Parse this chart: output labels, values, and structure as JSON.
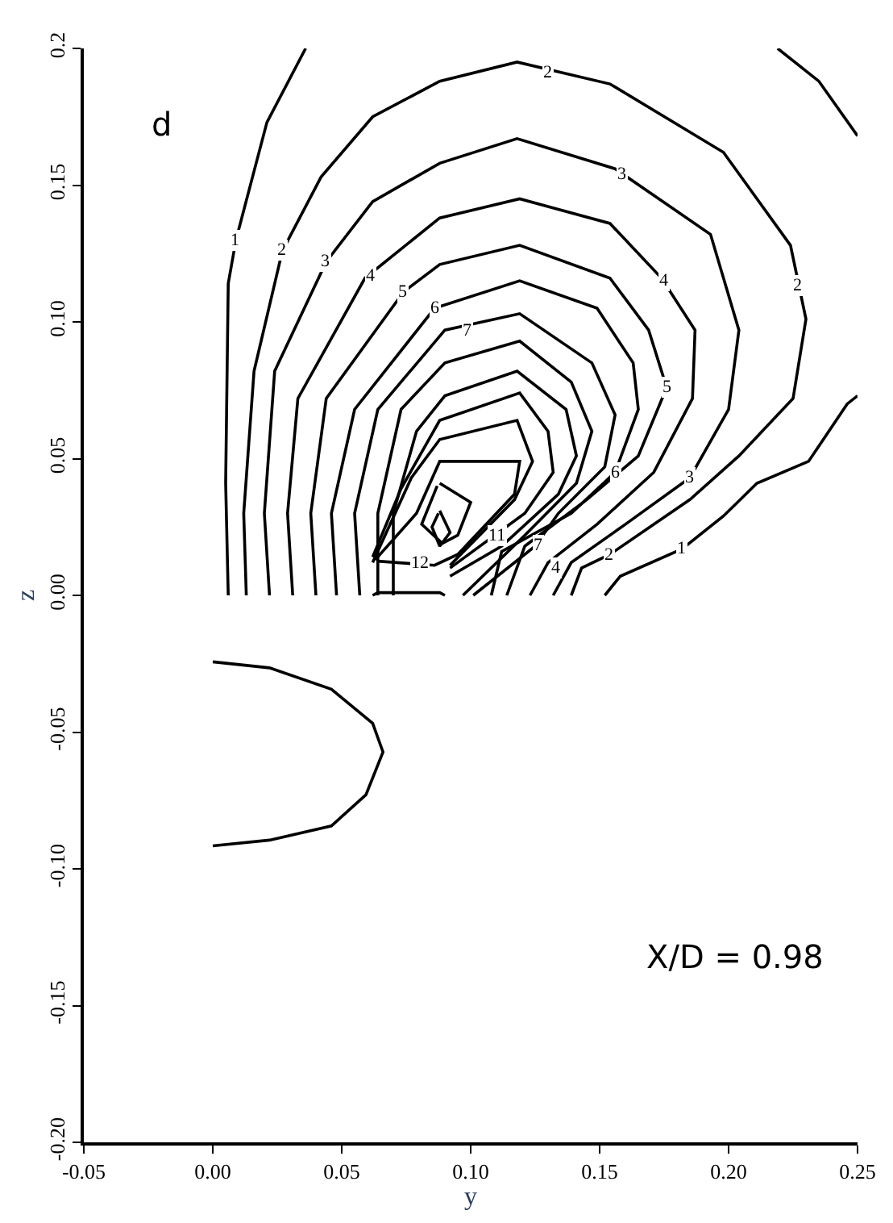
{
  "chart_data": {
    "type": "line",
    "xlabel": "y",
    "ylabel": "z",
    "xlim": [
      -0.05,
      0.25
    ],
    "ylim": [
      -0.2,
      0.2
    ],
    "xticks": [
      {
        "value": -0.05,
        "label": "-0.05"
      },
      {
        "value": 0,
        "label": "0.00"
      },
      {
        "value": 0.05,
        "label": "0.05"
      },
      {
        "value": 0.1,
        "label": "0.10"
      },
      {
        "value": 0.15,
        "label": "0.15"
      },
      {
        "value": 0.2,
        "label": "0.20"
      },
      {
        "value": 0.25,
        "label": "0.25"
      }
    ],
    "yticks": [
      {
        "value": -0.2,
        "label": "-0.20"
      },
      {
        "value": -0.15,
        "label": "-0.15"
      },
      {
        "value": -0.1,
        "label": "-0.10"
      },
      {
        "value": -0.05,
        "label": "-0.05"
      },
      {
        "value": 0,
        "label": "0.00"
      },
      {
        "value": 0.05,
        "label": "0.05"
      },
      {
        "value": 0.1,
        "label": "0.10"
      },
      {
        "value": 0.15,
        "label": "0.15"
      },
      {
        "value": 0.2,
        "label": "0.2"
      }
    ],
    "grid": false,
    "marker": "none",
    "line_style": "solid",
    "series": [
      {
        "color": "#000000",
        "x": [
          0.006,
          0.005,
          0.006,
          0.009,
          0.021,
          0.036,
          null,
          0.219,
          0.235,
          0.25,
          null,
          0.152,
          0.158,
          0.182,
          0.198,
          0.211,
          0.231,
          0.246,
          0.25
        ],
        "values": [
          0.0,
          0.041,
          0.114,
          0.13,
          0.173,
          0.2,
          null,
          0.2,
          0.188,
          0.168,
          null,
          0.0,
          0.007,
          0.017,
          0.029,
          0.041,
          0.049,
          0.07,
          0.073
        ]
      },
      {
        "color": "#000000",
        "x": [
          0.013,
          0.012,
          0.016,
          0.027,
          0.042,
          0.062,
          0.088,
          0.118,
          0.154,
          0.198,
          0.224,
          0.23,
          0.225,
          0.204,
          0.185,
          0.154,
          0.143,
          0.139
        ],
        "values": [
          0.0,
          0.03,
          0.082,
          0.126,
          0.153,
          0.175,
          0.188,
          0.195,
          0.187,
          0.162,
          0.128,
          0.101,
          0.072,
          0.051,
          0.035,
          0.015,
          0.01,
          0.0
        ]
      },
      {
        "color": "#000000",
        "x": [
          0.022,
          0.02,
          0.024,
          0.044,
          0.062,
          0.088,
          0.118,
          0.156,
          0.193,
          0.204,
          0.2,
          0.185,
          0.16,
          0.139,
          0.132
        ],
        "values": [
          0.0,
          0.03,
          0.082,
          0.122,
          0.144,
          0.158,
          0.167,
          0.156,
          0.132,
          0.097,
          0.068,
          0.043,
          0.026,
          0.012,
          0.0
        ]
      },
      {
        "color": "#000000",
        "x": [
          0.031,
          0.029,
          0.033,
          0.059,
          0.088,
          0.119,
          0.154,
          0.174,
          0.187,
          0.186,
          0.171,
          0.149,
          0.13,
          0.123
        ],
        "values": [
          0.0,
          0.03,
          0.072,
          0.116,
          0.138,
          0.145,
          0.136,
          0.116,
          0.097,
          0.072,
          0.045,
          0.026,
          0.012,
          0.0
        ]
      },
      {
        "color": "#000000",
        "x": [
          0.04,
          0.038,
          0.044,
          0.074,
          0.088,
          0.119,
          0.154,
          0.169,
          0.176,
          0.165,
          0.145,
          0.121,
          0.114
        ],
        "values": [
          0.0,
          0.03,
          0.072,
          0.111,
          0.121,
          0.128,
          0.116,
          0.097,
          0.076,
          0.051,
          0.035,
          0.018,
          0.0
        ]
      },
      {
        "color": "#000000",
        "x": [
          0.048,
          0.046,
          0.055,
          0.086,
          0.119,
          0.149,
          0.163,
          0.165,
          0.156,
          0.139,
          0.112,
          0.108
        ],
        "values": [
          0.0,
          0.03,
          0.068,
          0.105,
          0.115,
          0.105,
          0.085,
          0.068,
          0.045,
          0.03,
          0.016,
          0.0
        ]
      },
      {
        "color": "#000000",
        "x": [
          0.057,
          0.055,
          0.064,
          0.09,
          0.119,
          0.147,
          0.156,
          0.152,
          0.134,
          0.125,
          0.101
        ],
        "values": [
          0.0,
          0.03,
          0.068,
          0.097,
          0.103,
          0.085,
          0.066,
          0.047,
          0.03,
          0.018,
          0.0
        ]
      },
      {
        "color": "#000000",
        "x": [
          0.064,
          0.064,
          0.073,
          0.09,
          0.119,
          0.139,
          0.147,
          0.141,
          0.121,
          0.097
        ],
        "values": [
          0.0,
          0.03,
          0.068,
          0.085,
          0.093,
          0.078,
          0.06,
          0.041,
          0.022,
          0.0
        ]
      },
      {
        "color": "#000000",
        "x": [
          0.07,
          0.07,
          0.079,
          0.09,
          0.118,
          0.137,
          0.141,
          0.134,
          0.112,
          0.092
        ],
        "values": [
          0.0,
          0.03,
          0.06,
          0.073,
          0.082,
          0.068,
          0.051,
          0.037,
          0.018,
          0.007
        ]
      },
      {
        "color": "#000000",
        "x": [
          0.062,
          0.073,
          0.088,
          0.119,
          0.13,
          0.132,
          0.121,
          0.092
        ],
        "values": [
          0.014,
          0.039,
          0.064,
          0.074,
          0.06,
          0.045,
          0.03,
          0.01
        ]
      },
      {
        "color": "#000000",
        "x": [
          0.062,
          0.077,
          0.088,
          0.118,
          0.124,
          0.117,
          0.092
        ],
        "values": [
          0.012,
          0.043,
          0.057,
          0.064,
          0.049,
          0.035,
          0.011
        ]
      },
      {
        "color": "#000000",
        "x": [
          0.063,
          0.079,
          0.088,
          0.119,
          0.117,
          0.095,
          0.086,
          0.064
        ],
        "values": [
          0.013,
          0.03,
          0.049,
          0.049,
          0.037,
          0.015,
          0.011,
          0.0125
        ]
      },
      {
        "color": "#000000",
        "x": [
          0.088,
          0.1,
          0.095,
          0.089,
          0.081,
          0.087
        ],
        "values": [
          0.041,
          0.034,
          0.022,
          0.019,
          0.026,
          0.04
        ]
      },
      {
        "color": "#000000",
        "x": [
          0.088,
          0.092,
          0.088,
          0.085,
          0.0875
        ],
        "values": [
          0.031,
          0.023,
          0.018,
          0.025,
          0.03
        ]
      },
      {
        "color": "#000000",
        "x": [
          0.062,
          0.064,
          0.088,
          0.09
        ],
        "values": [
          0.0,
          0.001,
          0.001,
          0.0
        ]
      },
      {
        "color": "#000000",
        "x": [
          0.0,
          0.022,
          0.046,
          0.062,
          0.066,
          0.0594,
          0.046,
          0.022,
          0.0
        ],
        "values": [
          -0.0243,
          -0.0265,
          -0.0343,
          -0.0468,
          -0.0573,
          -0.0729,
          -0.0843,
          -0.0895,
          -0.0916
        ]
      }
    ],
    "annotations": [
      "d",
      "X/D = 0.98",
      {
        "text": "1",
        "x": 0.009,
        "y": 0.13
      },
      {
        "text": "1",
        "x": 0.182,
        "y": 0.017
      },
      {
        "text": "2",
        "x": 0.13,
        "y": 0.191
      },
      {
        "text": "2",
        "x": 0.227,
        "y": 0.113
      },
      {
        "text": "2",
        "x": 0.027,
        "y": 0.126
      },
      {
        "text": "2",
        "x": 0.154,
        "y": 0.015
      },
      {
        "text": "3",
        "x": 0.159,
        "y": 0.154
      },
      {
        "text": "3",
        "x": 0.044,
        "y": 0.122
      },
      {
        "text": "3",
        "x": 0.185,
        "y": 0.043
      },
      {
        "text": "4",
        "x": 0.061,
        "y": 0.117
      },
      {
        "text": "4",
        "x": 0.175,
        "y": 0.115
      },
      {
        "text": "4",
        "x": 0.133,
        "y": 0.01
      },
      {
        "text": "5",
        "x": 0.074,
        "y": 0.111
      },
      {
        "text": "5",
        "x": 0.176,
        "y": 0.076
      },
      {
        "text": "6",
        "x": 0.086,
        "y": 0.105
      },
      {
        "text": "6",
        "x": 0.156,
        "y": 0.045
      },
      {
        "text": "7",
        "x": 0.099,
        "y": 0.097
      },
      {
        "text": "7",
        "x": 0.126,
        "y": 0.018
      },
      {
        "text": "11",
        "x": 0.11,
        "y": 0.022
      },
      {
        "text": "12",
        "x": 0.08,
        "y": 0.012
      }
    ]
  }
}
